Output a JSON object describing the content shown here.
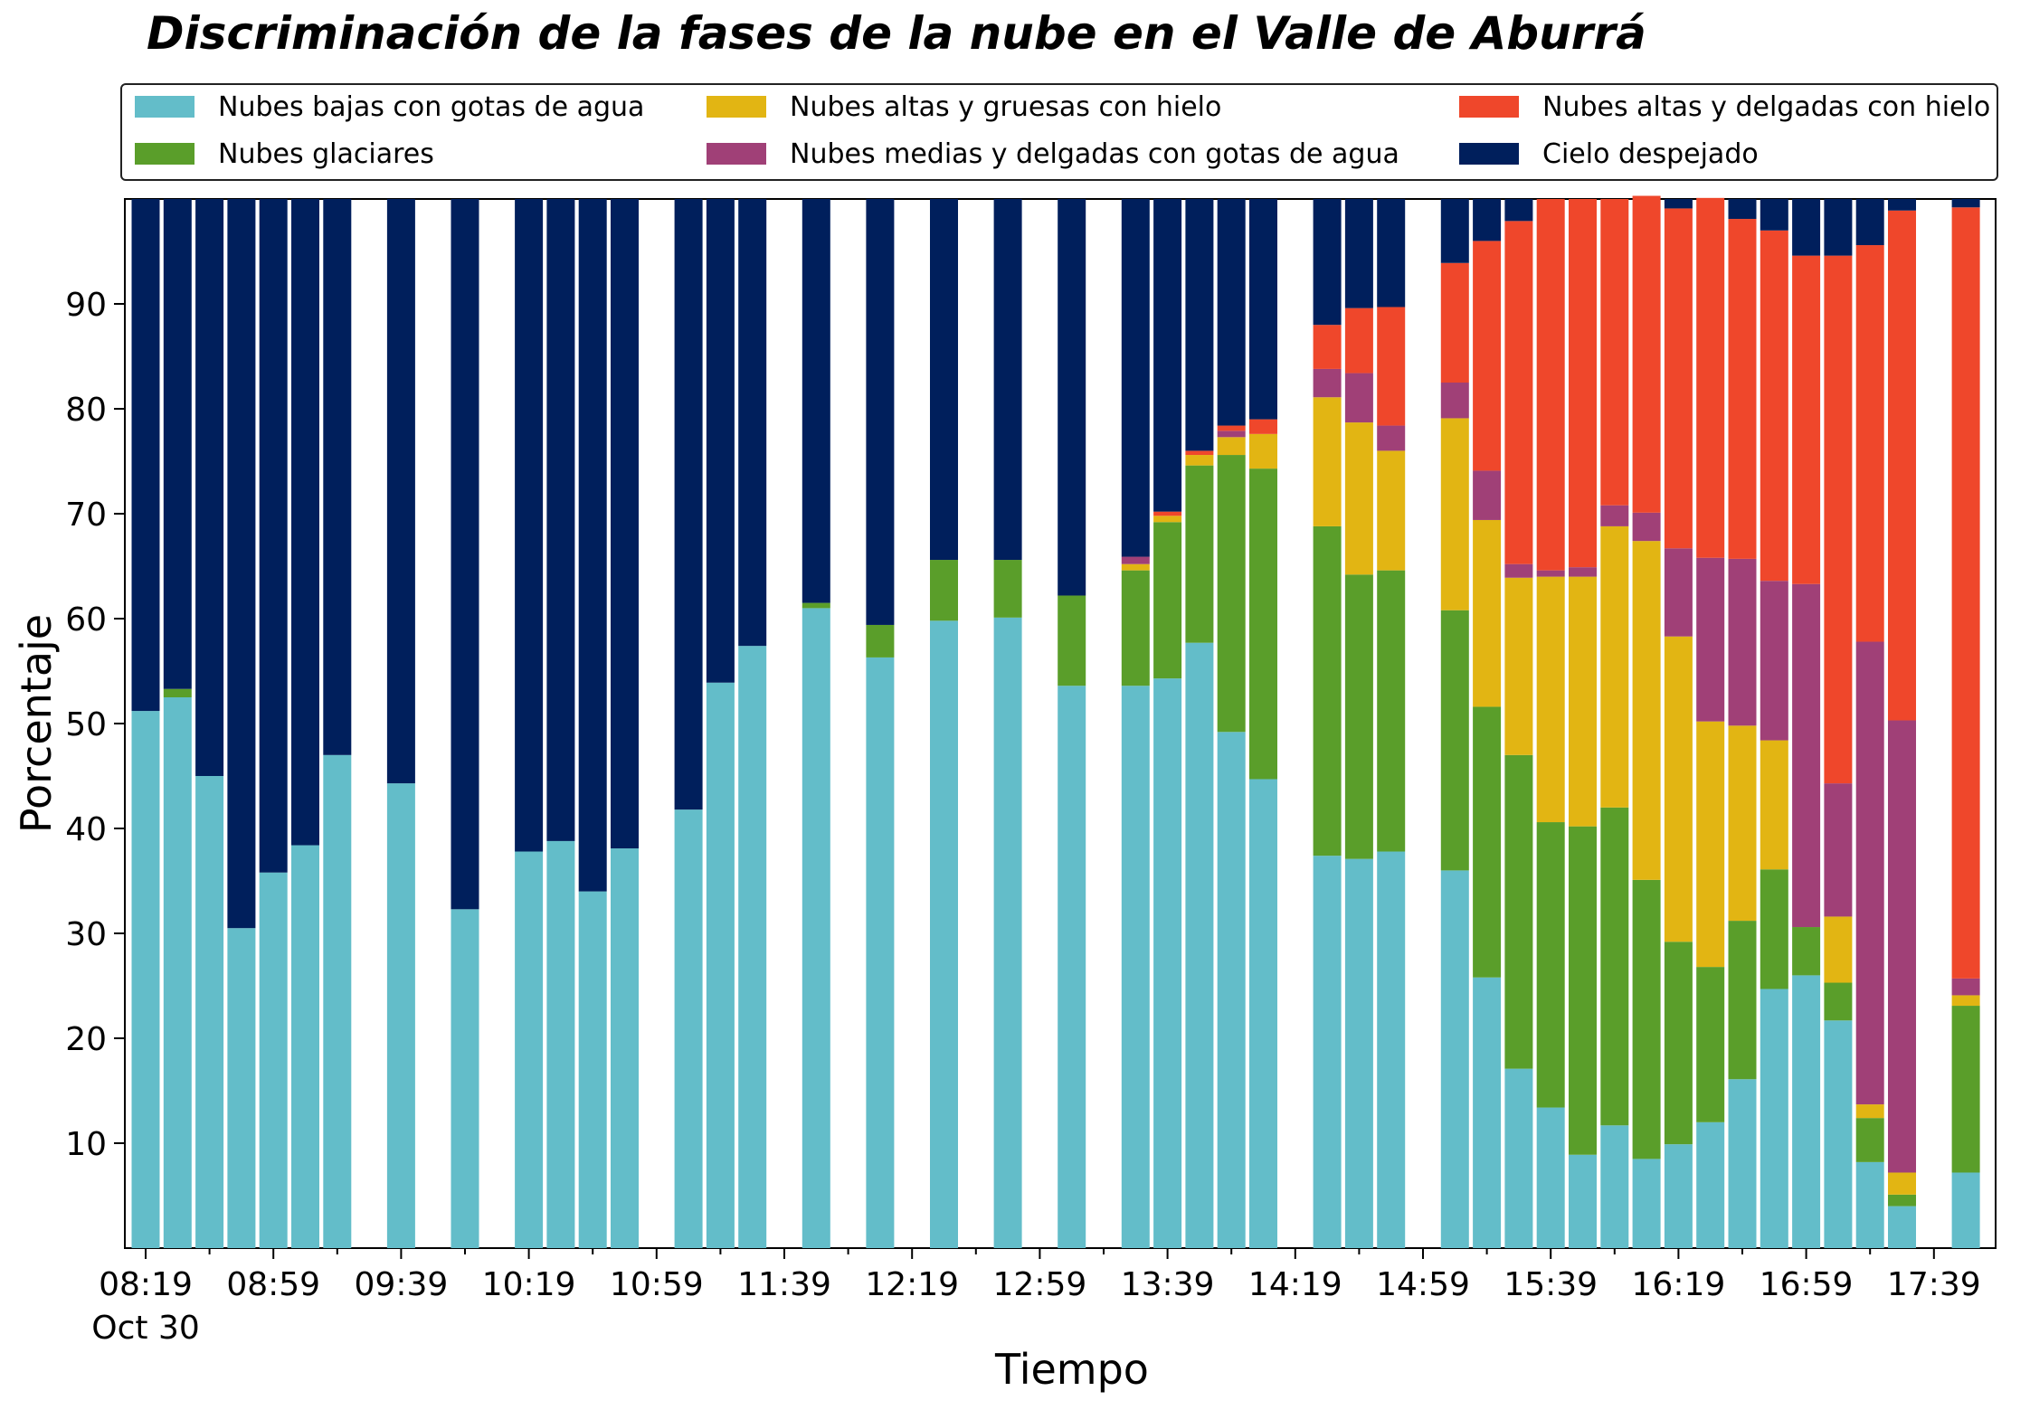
{
  "chart_data": {
    "type": "bar",
    "stacked": true,
    "title": "Discriminación de la fases de la nube en el Valle de Aburrá",
    "xlabel": "Tiempo",
    "ylabel": "Porcentaje",
    "ylim": [
      0,
      100
    ],
    "yticks": [
      10,
      20,
      30,
      40,
      50,
      60,
      70,
      80,
      90
    ],
    "grid": false,
    "legend_position": "top",
    "xtick_labels": [
      "08:19",
      "08:59",
      "09:39",
      "10:19",
      "10:59",
      "11:39",
      "12:19",
      "12:59",
      "13:39",
      "14:19",
      "14:59",
      "15:39",
      "16:19",
      "16:59",
      "17:39"
    ],
    "xtick_sublabel": "Oct 30",
    "slots": 58,
    "xtick_slot_step": 4,
    "series": [
      {
        "name": "Nubes bajas con gotas de agua",
        "color": "#63bdc9"
      },
      {
        "name": "Nubes glaciares",
        "color": "#5a9e2a"
      },
      {
        "name": "Nubes altas y gruesas con hielo",
        "color": "#e2b513"
      },
      {
        "name": "Nubes medias y delgadas con gotas de agua",
        "color": "#a04077"
      },
      {
        "name": "Nubes altas y delgadas con hielo",
        "color": "#ef472b"
      },
      {
        "name": "Cielo despejado",
        "color": "#001f5c"
      }
    ],
    "bars": [
      {
        "slot": 0,
        "values": [
          51.2,
          0,
          0,
          0,
          0,
          48.8
        ]
      },
      {
        "slot": 1,
        "values": [
          52.5,
          0.8,
          0,
          0,
          0,
          46.7
        ]
      },
      {
        "slot": 2,
        "values": [
          45.0,
          0,
          0,
          0,
          0,
          55.0
        ]
      },
      {
        "slot": 3,
        "values": [
          30.5,
          0,
          0,
          0,
          0,
          69.5
        ]
      },
      {
        "slot": 4,
        "values": [
          35.8,
          0,
          0,
          0,
          0,
          64.2
        ]
      },
      {
        "slot": 5,
        "values": [
          38.4,
          0,
          0,
          0,
          0,
          61.6
        ]
      },
      {
        "slot": 6,
        "values": [
          47.0,
          0,
          0,
          0,
          0,
          53.0
        ]
      },
      {
        "slot": 8,
        "values": [
          44.3,
          0,
          0,
          0,
          0,
          55.7
        ]
      },
      {
        "slot": 10,
        "values": [
          32.3,
          0,
          0,
          0,
          0,
          67.7
        ]
      },
      {
        "slot": 12,
        "values": [
          37.8,
          0,
          0,
          0,
          0,
          62.2
        ]
      },
      {
        "slot": 13,
        "values": [
          38.8,
          0,
          0,
          0,
          0,
          61.2
        ]
      },
      {
        "slot": 14,
        "values": [
          34.0,
          0,
          0,
          0,
          0,
          66.0
        ]
      },
      {
        "slot": 15,
        "values": [
          38.1,
          0,
          0,
          0,
          0,
          61.9
        ]
      },
      {
        "slot": 17,
        "values": [
          41.8,
          0,
          0,
          0,
          0,
          58.2
        ]
      },
      {
        "slot": 18,
        "values": [
          53.9,
          0,
          0,
          0,
          0,
          46.1
        ]
      },
      {
        "slot": 19,
        "values": [
          57.4,
          0,
          0,
          0,
          0,
          42.6
        ]
      },
      {
        "slot": 21,
        "values": [
          61.0,
          0.5,
          0,
          0,
          0,
          38.5
        ]
      },
      {
        "slot": 23,
        "values": [
          56.3,
          3.1,
          0,
          0,
          0,
          40.6
        ]
      },
      {
        "slot": 25,
        "values": [
          59.8,
          5.8,
          0,
          0,
          0,
          34.4
        ]
      },
      {
        "slot": 27,
        "values": [
          60.1,
          5.5,
          0,
          0,
          0,
          34.4
        ]
      },
      {
        "slot": 29,
        "values": [
          53.6,
          8.6,
          0,
          0,
          0,
          37.8
        ]
      },
      {
        "slot": 31,
        "values": [
          53.6,
          11.0,
          0.6,
          0.7,
          0,
          34.1
        ]
      },
      {
        "slot": 32,
        "values": [
          54.3,
          14.9,
          0.6,
          0,
          0.4,
          29.8
        ]
      },
      {
        "slot": 33,
        "values": [
          57.7,
          16.9,
          1.0,
          0,
          0.4,
          24.0
        ]
      },
      {
        "slot": 34,
        "values": [
          49.2,
          26.4,
          1.7,
          0.6,
          0.5,
          21.6
        ]
      },
      {
        "slot": 35,
        "values": [
          44.7,
          29.6,
          3.3,
          0,
          1.4,
          21.0
        ]
      },
      {
        "slot": 37,
        "values": [
          37.4,
          31.4,
          12.3,
          2.7,
          4.2,
          12.0
        ]
      },
      {
        "slot": 38,
        "values": [
          37.1,
          27.1,
          14.5,
          4.7,
          6.2,
          10.4
        ]
      },
      {
        "slot": 39,
        "values": [
          37.8,
          26.8,
          11.4,
          2.4,
          11.3,
          10.3
        ]
      },
      {
        "slot": 41,
        "values": [
          36.0,
          24.8,
          18.3,
          3.4,
          11.4,
          6.1
        ]
      },
      {
        "slot": 42,
        "values": [
          25.8,
          25.8,
          17.8,
          4.7,
          21.9,
          4.0
        ]
      },
      {
        "slot": 43,
        "values": [
          17.1,
          29.9,
          16.9,
          1.3,
          32.7,
          2.1
        ]
      },
      {
        "slot": 44,
        "values": [
          13.4,
          27.2,
          23.4,
          0.6,
          35.4,
          0
        ]
      },
      {
        "slot": 45,
        "values": [
          8.9,
          31.3,
          23.8,
          0.9,
          35.1,
          0
        ]
      },
      {
        "slot": 46,
        "values": [
          11.7,
          30.3,
          26.8,
          2.0,
          29.2,
          0
        ]
      },
      {
        "slot": 47,
        "values": [
          8.5,
          26.6,
          32.3,
          2.7,
          30.2,
          0
        ]
      },
      {
        "slot": 48,
        "values": [
          9.9,
          19.3,
          29.1,
          8.4,
          32.4,
          0.9
        ]
      },
      {
        "slot": 49,
        "values": [
          12.0,
          14.8,
          23.4,
          15.6,
          34.3,
          0
        ]
      },
      {
        "slot": 50,
        "values": [
          16.1,
          15.1,
          18.6,
          15.9,
          32.4,
          1.9
        ]
      },
      {
        "slot": 51,
        "values": [
          24.7,
          11.4,
          12.3,
          15.2,
          33.4,
          3.0
        ]
      },
      {
        "slot": 52,
        "values": [
          26.0,
          4.6,
          0,
          32.7,
          31.3,
          5.4
        ]
      },
      {
        "slot": 53,
        "values": [
          21.7,
          3.6,
          6.3,
          12.7,
          50.3,
          5.4
        ]
      },
      {
        "slot": 54,
        "values": [
          8.2,
          4.2,
          1.3,
          44.1,
          37.8,
          4.4
        ]
      },
      {
        "slot": 55,
        "values": [
          4.0,
          1.1,
          2.1,
          43.1,
          48.6,
          1.1
        ]
      },
      {
        "slot": 57,
        "values": [
          7.2,
          15.9,
          1.0,
          1.6,
          73.5,
          0.8
        ]
      }
    ]
  }
}
